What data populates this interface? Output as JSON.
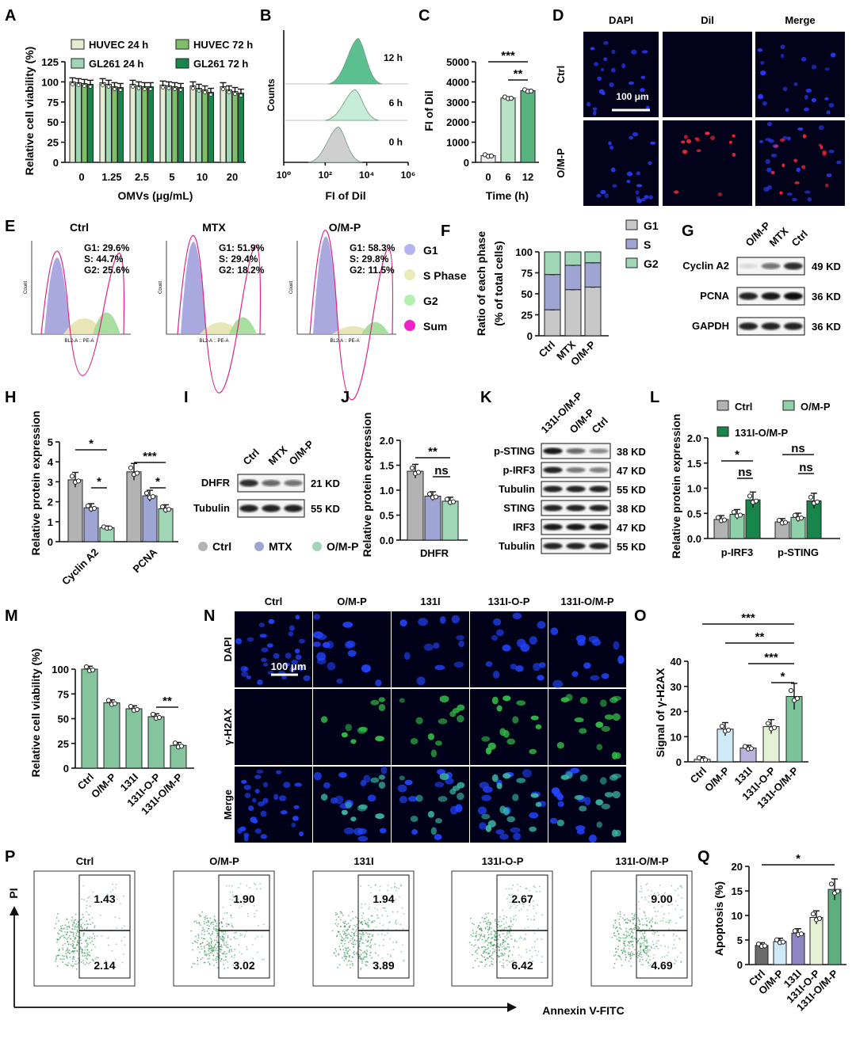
{
  "panels": {
    "A": {
      "letter": "A",
      "ylabel": "Relative cell viability (%)",
      "xlabel": "OMVs (μg/mL)",
      "legend": [
        "HUVEC 24 h",
        "HUVEC 72 h",
        "GL261 24 h",
        "GL261 72 h"
      ]
    },
    "B": {
      "letter": "B",
      "ylabel": "Counts",
      "xlabel": "FI of Dil",
      "tracks": [
        "12 h",
        "6 h",
        "0 h"
      ],
      "ticks": [
        "10⁰",
        "10²",
        "10⁴",
        "10⁶"
      ]
    },
    "C": {
      "letter": "C",
      "ylabel": "FI of Dil",
      "xlabel": "Time (h)",
      "sig": [
        "***",
        "**"
      ]
    },
    "D": {
      "letter": "D",
      "cols": [
        "DAPI",
        "Dil",
        "Merge"
      ],
      "rows": [
        "Ctrl",
        "O/M-P"
      ],
      "scale": "100 μm"
    },
    "E": {
      "letter": "E",
      "plots": [
        {
          "title": "Ctrl",
          "g1": "G1: 29.6%",
          "s": "S: 44.7%",
          "g2": "G2: 25.6%"
        },
        {
          "title": "MTX",
          "g1": "G1: 51.9%",
          "s": "S: 29.4%",
          "g2": "G2: 18.2%"
        },
        {
          "title": "O/M-P",
          "g1": "G1: 58.3%",
          "s": "S: 29.8%",
          "g2": "G2: 11.5%"
        }
      ],
      "xaxis": "BL2-A :: PE-A",
      "yaxis": "Count",
      "legend": [
        "G1",
        "S Phase",
        "G2",
        "Sum"
      ]
    },
    "F": {
      "letter": "F",
      "ylabel1": "Ratio of each phase",
      "ylabel2": "(% of total cells)",
      "legend": [
        "G1",
        "S",
        "G2"
      ]
    },
    "G": {
      "letter": "G",
      "lanes": [
        "O/M-P",
        "MTX",
        "Ctrl"
      ],
      "rows": [
        {
          "name": "Cyclin A2",
          "kd": "49 KD"
        },
        {
          "name": "PCNA",
          "kd": "36 KD"
        },
        {
          "name": "GAPDH",
          "kd": "36 KD"
        }
      ]
    },
    "H": {
      "letter": "H",
      "ylabel": "Relative protein expression",
      "sig": [
        "*",
        "*",
        "***",
        "*"
      ]
    },
    "I": {
      "letter": "I",
      "lanes": [
        "Ctrl",
        "MTX",
        "O/M-P"
      ],
      "rows": [
        {
          "name": "DHFR",
          "kd": "21 KD"
        },
        {
          "name": "Tubulin",
          "kd": "55 KD"
        }
      ],
      "legend": [
        "Ctrl",
        "MTX",
        "O/M-P"
      ]
    },
    "J": {
      "letter": "J",
      "ylabel": "Relative protein expression",
      "sig": [
        "**",
        "ns"
      ]
    },
    "K": {
      "letter": "K",
      "lanes": [
        "131I-O/M-P",
        "O/M-P",
        "Ctrl"
      ],
      "rows": [
        {
          "name": "p-STING",
          "kd": "38 KD"
        },
        {
          "name": "p-IRF3",
          "kd": "47 KD"
        },
        {
          "name": "Tubulin",
          "kd": "55 KD"
        },
        {
          "name": "STING",
          "kd": "38 KD"
        },
        {
          "name": "IRF3",
          "kd": "47 KD"
        },
        {
          "name": "Tubulin",
          "kd": "55 KD"
        }
      ]
    },
    "L": {
      "letter": "L",
      "ylabel": "Relative protein expression",
      "legend": [
        "Ctrl",
        "O/M-P",
        "131I-O/M-P"
      ],
      "sig": [
        "*",
        "ns",
        "ns",
        "ns"
      ]
    },
    "M": {
      "letter": "M",
      "ylabel": "Relative cell viability (%)",
      "sig": [
        "**"
      ]
    },
    "N": {
      "letter": "N",
      "cols": [
        "Ctrl",
        "O/M-P",
        "131I",
        "131I-O-P",
        "131I-O/M-P"
      ],
      "rows": [
        "DAPI",
        "γ-H2AX",
        "Merge"
      ],
      "scale": "100 μm"
    },
    "O": {
      "letter": "O",
      "ylabel": "Signal of γ-H2AX",
      "sig": [
        "***",
        "**",
        "***",
        "*"
      ]
    },
    "P": {
      "letter": "P",
      "titles": [
        "Ctrl",
        "O/M-P",
        "131I",
        "131I-O-P",
        "131I-O/M-P"
      ],
      "upper": [
        "1.43",
        "1.90",
        "1.94",
        "2.67",
        "9.00"
      ],
      "lower": [
        "2.14",
        "3.02",
        "3.89",
        "6.42",
        "4.69"
      ],
      "xlabel": "Annexin V-FITC",
      "ylabel": "PI"
    },
    "Q": {
      "letter": "Q",
      "ylabel": "Apoptosis (%)",
      "sig": [
        "*"
      ]
    }
  },
  "chart_data": [
    {
      "id": "A",
      "type": "bar",
      "categories": [
        "0",
        "1.25",
        "2.5",
        "5",
        "10",
        "20"
      ],
      "ylim": [
        0,
        125
      ],
      "yticks": [
        0,
        25,
        50,
        75,
        100,
        125
      ],
      "series": [
        {
          "name": "HUVEC 24 h",
          "values": [
            100,
            99,
            97,
            96,
            95,
            94
          ],
          "color": "#e3ecd3"
        },
        {
          "name": "GL261 24 h",
          "values": [
            99,
            97,
            95,
            95,
            92,
            90
          ],
          "color": "#9fd7b6"
        },
        {
          "name": "HUVEC 72 h",
          "values": [
            98,
            94,
            94,
            94,
            90,
            88
          ],
          "color": "#7fbf6a"
        },
        {
          "name": "GL261 72 h",
          "values": [
            97,
            93,
            94,
            93,
            87,
            86
          ],
          "color": "#18854a"
        }
      ]
    },
    {
      "id": "C",
      "type": "bar",
      "categories": [
        "0",
        "6",
        "12"
      ],
      "values": [
        330,
        3200,
        3560
      ],
      "ylim": [
        0,
        5000
      ],
      "yticks": [
        0,
        1000,
        2000,
        3000,
        4000,
        5000
      ],
      "colors": [
        "#ececec",
        "#b7e3c4",
        "#58b37d"
      ]
    },
    {
      "id": "F",
      "type": "bar",
      "stacked": true,
      "categories": [
        "Ctrl",
        "MTX",
        "O/M-P"
      ],
      "ylim": [
        0,
        100
      ],
      "yticks": [
        0,
        25,
        50,
        75,
        100
      ],
      "series": [
        {
          "name": "G1",
          "values": [
            31,
            55,
            58
          ],
          "color": "#c8c8c8"
        },
        {
          "name": "S",
          "values": [
            42,
            29,
            29
          ],
          "color": "#9fa5d3"
        },
        {
          "name": "G2",
          "values": [
            27,
            16,
            13
          ],
          "color": "#9fd7b6"
        }
      ]
    },
    {
      "id": "H",
      "type": "bar",
      "categories": [
        "Cyclin A2",
        "PCNA"
      ],
      "ylim": [
        0,
        5
      ],
      "yticks": [
        0,
        1,
        2,
        3,
        4,
        5
      ],
      "series": [
        {
          "name": "Ctrl",
          "values": [
            3.1,
            3.5
          ],
          "color": "#b3b3b3"
        },
        {
          "name": "MTX",
          "values": [
            1.7,
            2.3
          ],
          "color": "#9fa5d3"
        },
        {
          "name": "O/M-P",
          "values": [
            0.7,
            1.65
          ],
          "color": "#9fd7b6"
        }
      ]
    },
    {
      "id": "J",
      "type": "bar",
      "categories": [
        "DHFR"
      ],
      "ylim": [
        0,
        2.0
      ],
      "yticks": [
        0.0,
        0.5,
        1.0,
        1.5,
        2.0
      ],
      "series": [
        {
          "name": "Ctrl",
          "values": [
            1.38
          ],
          "color": "#b3b3b3"
        },
        {
          "name": "MTX",
          "values": [
            0.88
          ],
          "color": "#9fa5d3"
        },
        {
          "name": "O/M-P",
          "values": [
            0.78
          ],
          "color": "#9fd7b6"
        }
      ]
    },
    {
      "id": "L",
      "type": "bar",
      "categories": [
        "p-IRF3",
        "p-STING"
      ],
      "ylim": [
        0,
        2.0
      ],
      "yticks": [
        0.0,
        0.5,
        1.0,
        1.5,
        2.0
      ],
      "series": [
        {
          "name": "Ctrl",
          "values": [
            0.38,
            0.33
          ],
          "color": "#b3b3b3"
        },
        {
          "name": "O/M-P",
          "values": [
            0.48,
            0.42
          ],
          "color": "#8ed0a8"
        },
        {
          "name": "131I-O/M-P",
          "values": [
            0.77,
            0.75
          ],
          "color": "#18854a"
        }
      ]
    },
    {
      "id": "M",
      "type": "bar",
      "categories": [
        "Ctrl",
        "O/M-P",
        "131I",
        "131I-O-P",
        "131I-O/M-P"
      ],
      "values": [
        100,
        66,
        60,
        52,
        23
      ],
      "ylim": [
        0,
        100
      ],
      "yticks": [
        0,
        25,
        50,
        75,
        100
      ],
      "color": "#84c59e"
    },
    {
      "id": "O",
      "type": "bar",
      "categories": [
        "Ctrl",
        "O/M-P",
        "131I",
        "131I-O-P",
        "131I-O/M-P"
      ],
      "values": [
        1,
        13,
        5.5,
        14,
        26
      ],
      "ylim": [
        0,
        40
      ],
      "yticks": [
        0,
        10,
        20,
        30,
        40
      ],
      "colors": [
        "#e6e6e6",
        "#cfe9f7",
        "#b9b3dd",
        "#e5f1d6",
        "#7cc39b"
      ]
    },
    {
      "id": "Q",
      "type": "bar",
      "categories": [
        "Ctrl",
        "O/M-P",
        "131I",
        "131I-O-P",
        "131I-O/M-P"
      ],
      "values": [
        3.9,
        4.7,
        6.4,
        9.6,
        15.3
      ],
      "ylim": [
        0,
        20
      ],
      "yticks": [
        0,
        5,
        10,
        15,
        20
      ],
      "colors": [
        "#6b6b6b",
        "#cfe9f7",
        "#8d86c2",
        "#e5f1d6",
        "#5fae80"
      ]
    }
  ]
}
